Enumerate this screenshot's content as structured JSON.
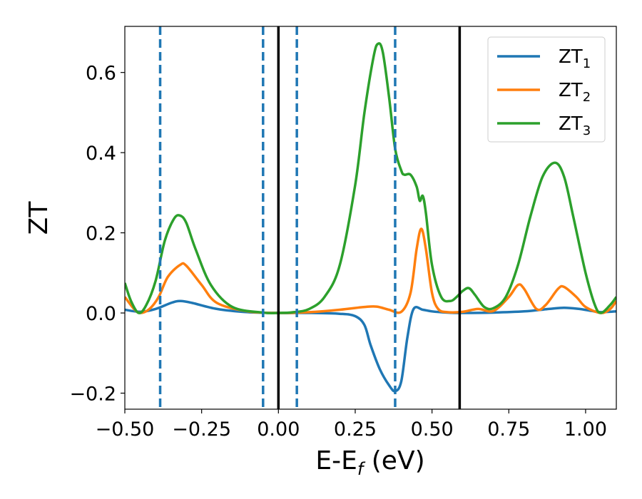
{
  "chart_data": {
    "type": "line",
    "title": "",
    "xlabel": {
      "main": "E-E",
      "sub": "f",
      "suffix": " (eV)"
    },
    "ylabel": "ZT",
    "xlim": [
      -0.5,
      1.1
    ],
    "ylim": [
      -0.24,
      0.715
    ],
    "xticks": [
      -0.5,
      -0.25,
      0.0,
      0.25,
      0.5,
      0.75,
      1.0
    ],
    "xtick_labels": [
      "−0.50",
      "−0.25",
      "0.00",
      "0.25",
      "0.50",
      "0.75",
      "1.00"
    ],
    "yticks": [
      -0.2,
      0.0,
      0.2,
      0.4,
      0.6
    ],
    "ytick_labels": [
      "−0.2",
      "0.0",
      "0.2",
      "0.4",
      "0.6"
    ],
    "grid": false,
    "legend_position": "top-right",
    "vlines_dashed": {
      "color": "#1f77b4",
      "x": [
        -0.385,
        -0.05,
        0.06,
        0.38
      ]
    },
    "vlines_solid": {
      "color": "#000000",
      "x": [
        0.0,
        0.59
      ]
    },
    "series": [
      {
        "name": "ZT",
        "sub": "1",
        "color": "#1f77b4",
        "points": [
          [
            -0.5,
            0.008
          ],
          [
            -0.45,
            0.003
          ],
          [
            -0.4,
            0.01
          ],
          [
            -0.35,
            0.025
          ],
          [
            -0.32,
            0.03
          ],
          [
            -0.28,
            0.025
          ],
          [
            -0.2,
            0.01
          ],
          [
            -0.1,
            0.002
          ],
          [
            0.0,
            0.0
          ],
          [
            0.1,
            0.0
          ],
          [
            0.2,
            -0.002
          ],
          [
            0.25,
            -0.008
          ],
          [
            0.28,
            -0.03
          ],
          [
            0.3,
            -0.08
          ],
          [
            0.33,
            -0.14
          ],
          [
            0.36,
            -0.18
          ],
          [
            0.38,
            -0.195
          ],
          [
            0.4,
            -0.17
          ],
          [
            0.42,
            -0.06
          ],
          [
            0.44,
            0.01
          ],
          [
            0.47,
            0.008
          ],
          [
            0.5,
            0.004
          ],
          [
            0.55,
            0.001
          ],
          [
            0.6,
            0.0
          ],
          [
            0.7,
            0.001
          ],
          [
            0.8,
            0.004
          ],
          [
            0.88,
            0.01
          ],
          [
            0.93,
            0.013
          ],
          [
            0.98,
            0.01
          ],
          [
            1.02,
            0.005
          ],
          [
            1.05,
            0.002
          ],
          [
            1.1,
            0.004
          ]
        ]
      },
      {
        "name": "ZT",
        "sub": "2",
        "color": "#ff7f0e",
        "points": [
          [
            -0.5,
            0.04
          ],
          [
            -0.47,
            0.01
          ],
          [
            -0.45,
            0.0
          ],
          [
            -0.42,
            0.01
          ],
          [
            -0.39,
            0.04
          ],
          [
            -0.36,
            0.09
          ],
          [
            -0.32,
            0.12
          ],
          [
            -0.3,
            0.118
          ],
          [
            -0.25,
            0.07
          ],
          [
            -0.2,
            0.025
          ],
          [
            -0.1,
            0.004
          ],
          [
            0.0,
            0.0
          ],
          [
            0.1,
            0.002
          ],
          [
            0.2,
            0.008
          ],
          [
            0.28,
            0.015
          ],
          [
            0.32,
            0.016
          ],
          [
            0.36,
            0.008
          ],
          [
            0.4,
            0.003
          ],
          [
            0.43,
            0.05
          ],
          [
            0.45,
            0.16
          ],
          [
            0.465,
            0.21
          ],
          [
            0.48,
            0.16
          ],
          [
            0.5,
            0.05
          ],
          [
            0.52,
            0.01
          ],
          [
            0.55,
            0.002
          ],
          [
            0.6,
            0.003
          ],
          [
            0.65,
            0.01
          ],
          [
            0.7,
            0.005
          ],
          [
            0.75,
            0.04
          ],
          [
            0.78,
            0.07
          ],
          [
            0.8,
            0.06
          ],
          [
            0.84,
            0.01
          ],
          [
            0.87,
            0.02
          ],
          [
            0.91,
            0.06
          ],
          [
            0.93,
            0.065
          ],
          [
            0.97,
            0.04
          ],
          [
            1.0,
            0.015
          ],
          [
            1.05,
            0.0
          ],
          [
            1.08,
            0.01
          ],
          [
            1.1,
            0.03
          ]
        ]
      },
      {
        "name": "ZT",
        "sub": "3",
        "color": "#2ca02c",
        "points": [
          [
            -0.5,
            0.075
          ],
          [
            -0.48,
            0.03
          ],
          [
            -0.455,
            0.0
          ],
          [
            -0.43,
            0.02
          ],
          [
            -0.4,
            0.08
          ],
          [
            -0.37,
            0.18
          ],
          [
            -0.34,
            0.235
          ],
          [
            -0.32,
            0.243
          ],
          [
            -0.3,
            0.225
          ],
          [
            -0.27,
            0.16
          ],
          [
            -0.22,
            0.07
          ],
          [
            -0.15,
            0.015
          ],
          [
            -0.05,
            0.001
          ],
          [
            0.0,
            0.0
          ],
          [
            0.05,
            0.002
          ],
          [
            0.1,
            0.01
          ],
          [
            0.15,
            0.04
          ],
          [
            0.2,
            0.12
          ],
          [
            0.25,
            0.32
          ],
          [
            0.28,
            0.5
          ],
          [
            0.31,
            0.64
          ],
          [
            0.325,
            0.672
          ],
          [
            0.34,
            0.65
          ],
          [
            0.36,
            0.54
          ],
          [
            0.38,
            0.41
          ],
          [
            0.4,
            0.355
          ],
          [
            0.41,
            0.345
          ],
          [
            0.43,
            0.345
          ],
          [
            0.45,
            0.315
          ],
          [
            0.46,
            0.28
          ],
          [
            0.47,
            0.292
          ],
          [
            0.48,
            0.25
          ],
          [
            0.5,
            0.12
          ],
          [
            0.53,
            0.04
          ],
          [
            0.56,
            0.03
          ],
          [
            0.58,
            0.04
          ],
          [
            0.6,
            0.055
          ],
          [
            0.62,
            0.062
          ],
          [
            0.64,
            0.045
          ],
          [
            0.67,
            0.015
          ],
          [
            0.7,
            0.012
          ],
          [
            0.74,
            0.04
          ],
          [
            0.78,
            0.12
          ],
          [
            0.82,
            0.24
          ],
          [
            0.86,
            0.34
          ],
          [
            0.9,
            0.375
          ],
          [
            0.93,
            0.34
          ],
          [
            0.96,
            0.24
          ],
          [
            1.0,
            0.1
          ],
          [
            1.03,
            0.02
          ],
          [
            1.05,
            0.0
          ],
          [
            1.08,
            0.02
          ],
          [
            1.1,
            0.04
          ]
        ]
      }
    ]
  }
}
